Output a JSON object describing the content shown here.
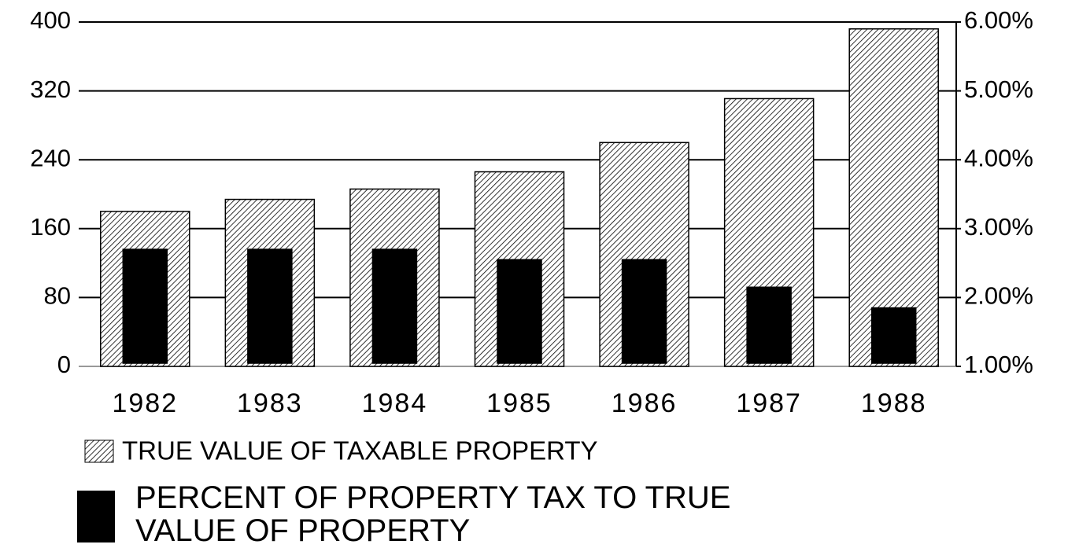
{
  "chart_data": {
    "type": "bar",
    "categories": [
      "1982",
      "1983",
      "1984",
      "1985",
      "1986",
      "1987",
      "1988"
    ],
    "series": [
      {
        "name": "TRUE VALUE OF TAXABLE PROPERTY",
        "color": "#000000",
        "pattern": "hatch",
        "values": [
          180,
          194,
          206,
          226,
          260,
          311,
          392
        ]
      },
      {
        "name": "PERCENT OF PROPERTY TAX TO TRUE VALUE OF PROPERTY",
        "color": "#000000",
        "pattern": "solid",
        "axis": "y2",
        "values": [
          2.7,
          2.7,
          2.7,
          2.55,
          2.55,
          2.15,
          1.85
        ]
      }
    ],
    "ylim": [
      0,
      400
    ],
    "yticks": [
      0,
      80,
      160,
      240,
      320,
      400
    ],
    "y2lim": [
      1,
      6
    ],
    "y2ticks": [
      {
        "value": 1,
        "label": "1.00%"
      },
      {
        "value": 2,
        "label": "2.00%"
      },
      {
        "value": 3,
        "label": "3.00%"
      },
      {
        "value": 4,
        "label": "4.00%"
      },
      {
        "value": 5,
        "label": "5.00%"
      },
      {
        "value": 6,
        "label": "6.00%"
      }
    ],
    "grid": true
  }
}
